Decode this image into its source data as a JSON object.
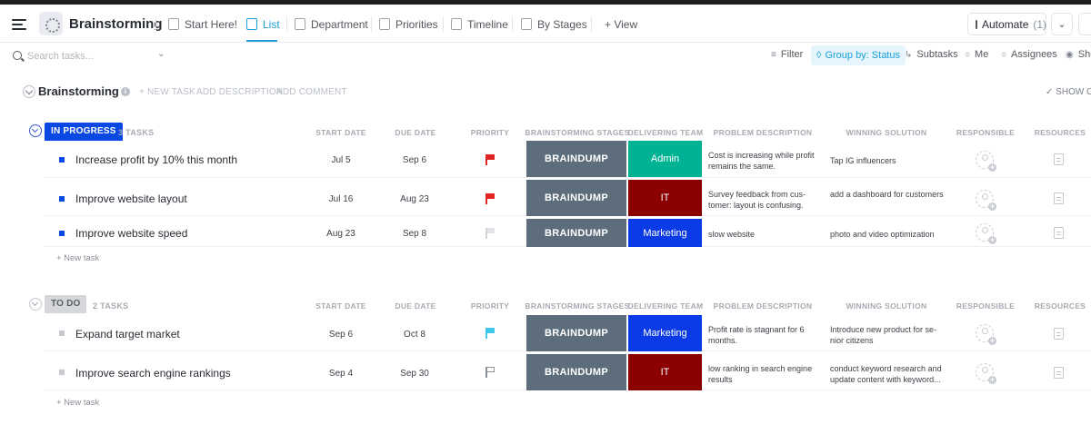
{
  "header": {
    "space_title": "Brainstorming",
    "tabs": [
      {
        "label": "Start Here!",
        "active": false
      },
      {
        "label": "List",
        "active": true
      },
      {
        "label": "Department",
        "active": false
      },
      {
        "label": "Priorities",
        "active": false
      },
      {
        "label": "Timeline",
        "active": false
      },
      {
        "label": "By Stages",
        "active": false
      }
    ],
    "add_view": "+ View",
    "automate_label": "Automate",
    "automate_count": "(1)"
  },
  "toolbar": {
    "search_placeholder": "Search tasks...",
    "filter": "Filter",
    "group_by": "Group by: Status",
    "subtasks": "Subtasks",
    "me": "Me",
    "assignees": "Assignees",
    "show": "Sho"
  },
  "list": {
    "title": "Brainstorming",
    "new_task": "+ NEW TASK",
    "add_description": "ADD DESCRIPTION",
    "add_comment": "ADD COMMENT",
    "show_closed": "SHOW CL"
  },
  "columns": {
    "start_date": "START DATE",
    "due_date": "DUE DATE",
    "priority": "PRIORITY",
    "stages": "BRAINSTORMING STAGES",
    "team": "DELIVERING TEAM",
    "problem": "PROBLEM DESCRIPTION",
    "solution": "WINNING SOLUTION",
    "responsible": "RESPONSIBLE",
    "resources": "RESOURCES"
  },
  "colors": {
    "in_progress": "#0a48e3",
    "to_do": "#d5d6d9",
    "stage": "#5e6d7c",
    "team_admin": "#00b294",
    "team_it": "#8b0000",
    "team_marketing": "#0a3be6",
    "accent": "#1a9fd9"
  },
  "groups": [
    {
      "status": "IN PROGRESS",
      "count_label": "3 TASKS",
      "new_task": "+ New task",
      "tasks": [
        {
          "name": "Increase profit by 10% this month",
          "start": "Jul 5",
          "due": "Sep 6",
          "priority": "red-flag",
          "stage": "BRAINDUMP",
          "team": "Admin",
          "problem": "Cost is increasing while profit remains the same.",
          "solution": "Tap IG influencers"
        },
        {
          "name": "Improve website layout",
          "start": "Jul 16",
          "due": "Aug 23",
          "priority": "red-flag",
          "stage": "BRAINDUMP",
          "team": "IT",
          "problem": "Survey feedback from cus-tomer: layout is confusing.",
          "solution": "add a dashboard for customers"
        },
        {
          "name": "Improve website speed",
          "start": "Aug 23",
          "due": "Sep 8",
          "priority": "grey-flag",
          "stage": "BRAINDUMP",
          "team": "Marketing",
          "problem": "slow website",
          "solution": "photo and video optimization"
        }
      ]
    },
    {
      "status": "TO DO",
      "count_label": "2 TASKS",
      "new_task": "+ New task",
      "tasks": [
        {
          "name": "Expand target market",
          "start": "Sep 6",
          "due": "Oct 8",
          "priority": "cyan-flag",
          "stage": "BRAINDUMP",
          "team": "Marketing",
          "problem": "Profit rate is stagnant for 6 months.",
          "solution": "Introduce new product for se-nior citizens"
        },
        {
          "name": "Improve search engine rankings",
          "start": "Sep 4",
          "due": "Sep 30",
          "priority": "outline-flag",
          "stage": "BRAINDUMP",
          "team": "IT",
          "problem": "low ranking in search engine results",
          "solution": "conduct keyword research and update content with keyword..."
        }
      ]
    }
  ]
}
